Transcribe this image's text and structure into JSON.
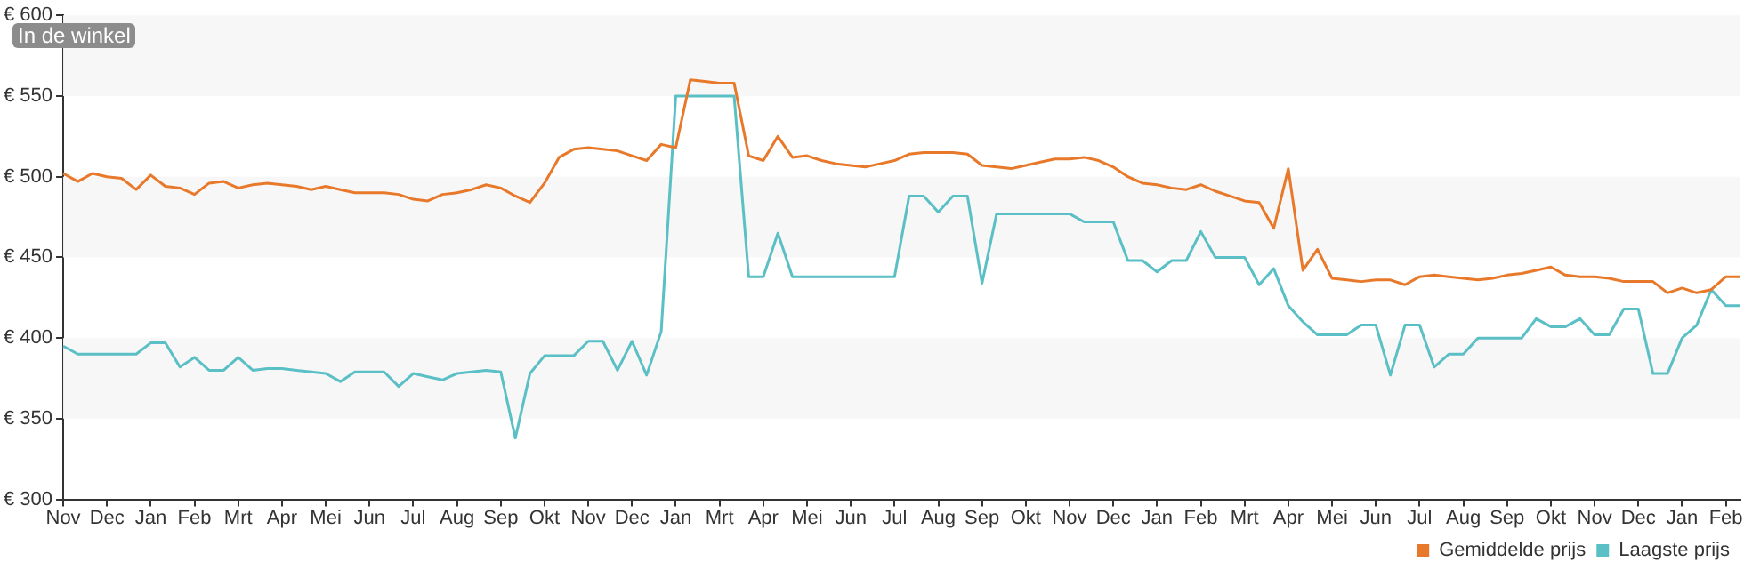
{
  "chart_data": {
    "type": "line",
    "annotations": [
      "In de winkel"
    ],
    "categories": [
      "Nov",
      null,
      null,
      "Dec",
      null,
      null,
      "Jan",
      null,
      null,
      "Feb",
      null,
      null,
      "Mrt",
      null,
      null,
      "Apr",
      null,
      null,
      "Mei",
      null,
      null,
      "Jun",
      null,
      null,
      "Jul",
      null,
      null,
      "Aug",
      null,
      null,
      "Sep",
      null,
      null,
      "Okt",
      null,
      null,
      "Nov",
      null,
      null,
      "Dec",
      null,
      null,
      "Jan",
      null,
      null,
      "Mrt",
      null,
      null,
      "Apr",
      null,
      null,
      "Mei",
      null,
      null,
      "Jun",
      null,
      null,
      "Jul",
      null,
      null,
      "Aug",
      null,
      null,
      "Sep",
      null,
      null,
      "Okt",
      null,
      null,
      "Nov",
      null,
      null,
      "Dec",
      null,
      null,
      "Jan",
      null,
      null,
      "Feb",
      null,
      null,
      "Mrt",
      null,
      null,
      "Apr",
      null,
      null,
      "Mei",
      null,
      null,
      "Jun",
      null,
      null,
      "Jul",
      null,
      null,
      "Aug",
      null,
      null,
      "Sep",
      null,
      null,
      "Okt",
      null,
      null,
      "Nov",
      null,
      null,
      "Dec",
      null,
      null,
      "Jan",
      null,
      null,
      "Feb",
      null
    ],
    "ylim": [
      300,
      600
    ],
    "yticks": [
      {
        "value": 300,
        "label": "€ 300"
      },
      {
        "value": 350,
        "label": "€ 350"
      },
      {
        "value": 400,
        "label": "€ 400"
      },
      {
        "value": 450,
        "label": "€ 450"
      },
      {
        "value": 500,
        "label": "€ 500"
      },
      {
        "value": 550,
        "label": "€ 550"
      },
      {
        "value": 600,
        "label": "€ 600"
      }
    ],
    "bands": [
      {
        "axis": "y",
        "from": 350,
        "to": 400,
        "color": "#f7f7f7"
      },
      {
        "axis": "y",
        "from": 450,
        "to": 500,
        "color": "#f7f7f7"
      },
      {
        "axis": "y",
        "from": 550,
        "to": 600,
        "color": "#f7f7f7"
      }
    ],
    "legend": "bottom right",
    "marker": "none",
    "line_style": "solid",
    "series": [
      {
        "name": "Gemiddelde prijs",
        "color": "#e8792b",
        "values": [
          502,
          497,
          502,
          500,
          499,
          492,
          501,
          494,
          493,
          489,
          496,
          497,
          493,
          495,
          496,
          495,
          494,
          492,
          494,
          492,
          490,
          490,
          490,
          489,
          486,
          485,
          489,
          490,
          492,
          495,
          493,
          488,
          484,
          496,
          512,
          517,
          518,
          517,
          516,
          513,
          510,
          520,
          518,
          560,
          559,
          558,
          558,
          513,
          510,
          525,
          512,
          513,
          510,
          508,
          507,
          506,
          508,
          510,
          514,
          515,
          515,
          515,
          514,
          507,
          506,
          505,
          507,
          509,
          511,
          511,
          512,
          510,
          506,
          500,
          496,
          495,
          493,
          492,
          495,
          491,
          488,
          485,
          484,
          468,
          505,
          442,
          455,
          437,
          436,
          435,
          436,
          436,
          433,
          438,
          439,
          438,
          437,
          436,
          437,
          439,
          440,
          442,
          444,
          439,
          438,
          438,
          437,
          435,
          435,
          435,
          428,
          431,
          428,
          430,
          438,
          438
        ]
      },
      {
        "name": "Laagste prijs",
        "color": "#5bbfc6",
        "values": [
          395,
          390,
          390,
          390,
          390,
          390,
          397,
          397,
          382,
          388,
          380,
          380,
          388,
          380,
          381,
          381,
          380,
          379,
          378,
          373,
          379,
          379,
          379,
          370,
          378,
          376,
          374,
          378,
          379,
          380,
          379,
          338,
          378,
          389,
          389,
          389,
          398,
          398,
          380,
          398,
          377,
          404,
          550,
          550,
          550,
          550,
          550,
          438,
          438,
          465,
          438,
          438,
          438,
          438,
          438,
          438,
          438,
          438,
          488,
          488,
          478,
          488,
          488,
          434,
          477,
          477,
          477,
          477,
          477,
          477,
          472,
          472,
          472,
          448,
          448,
          441,
          448,
          448,
          466,
          450,
          450,
          450,
          433,
          443,
          420,
          410,
          402,
          402,
          402,
          408,
          408,
          377,
          408,
          408,
          382,
          390,
          390,
          400,
          400,
          400,
          400,
          412,
          407,
          407,
          412,
          402,
          402,
          418,
          418,
          378,
          378,
          400,
          408,
          430,
          420,
          420
        ]
      }
    ]
  }
}
